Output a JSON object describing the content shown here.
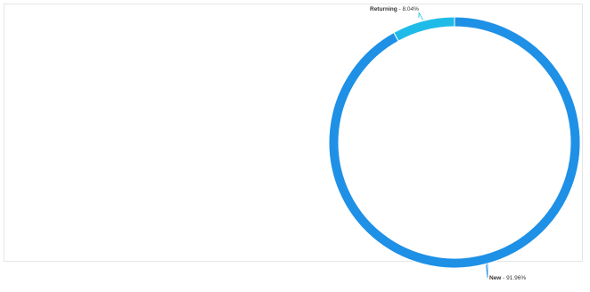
{
  "chart_data": {
    "type": "pie",
    "style": "donut",
    "slices": [
      {
        "label": "Returning",
        "value": 8.04,
        "display": "8.04%",
        "color": "#1fbbe8"
      },
      {
        "label": "New",
        "value": 91.96,
        "display": "91.96%",
        "color": "#1e90e6"
      }
    ],
    "legend": "none"
  }
}
